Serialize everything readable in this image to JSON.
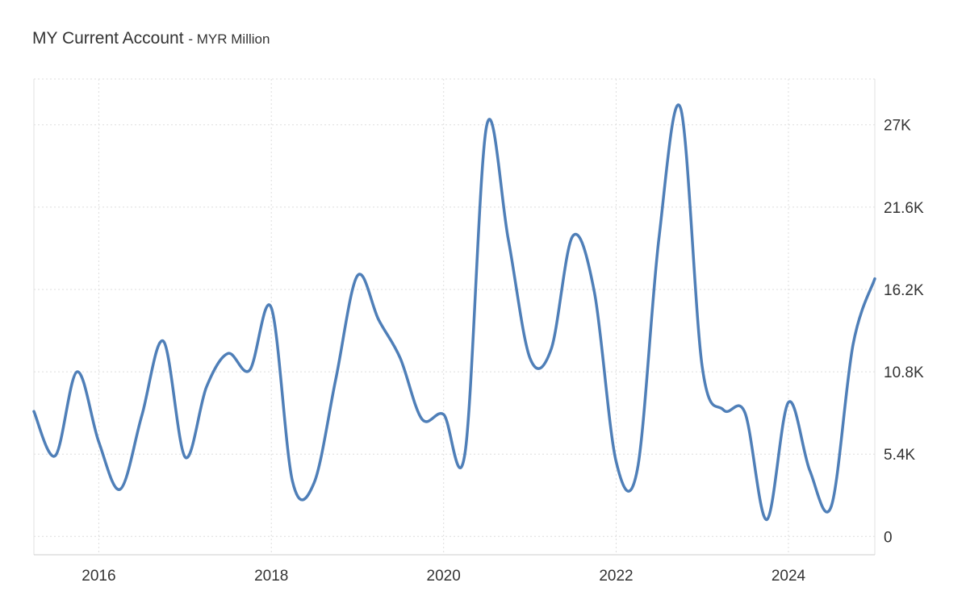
{
  "title": "MY Current Account",
  "subtitle": "- MYR Million",
  "chart_data": {
    "type": "line",
    "title": "MY Current Account",
    "subtitle": "MYR Million",
    "xlabel": "",
    "ylabel": "",
    "x_ticks": [
      "2016",
      "2018",
      "2020",
      "2022",
      "2024"
    ],
    "y_ticks": [
      {
        "value": 0,
        "label": "0"
      },
      {
        "value": 5400,
        "label": "5.4K"
      },
      {
        "value": 10800,
        "label": "10.8K"
      },
      {
        "value": 16200,
        "label": "16.2K"
      },
      {
        "value": 21600,
        "label": "21.6K"
      },
      {
        "value": 27000,
        "label": "27K"
      }
    ],
    "xlim": [
      "2015-04-01",
      "2025-01-01"
    ],
    "ylim": [
      -1200,
      30000
    ],
    "grid": true,
    "line_color": "#4f7fb8",
    "series": [
      {
        "x": [
          "2015-04-01",
          "2015-07-01",
          "2015-10-01",
          "2016-01-01",
          "2016-04-01",
          "2016-07-01",
          "2016-10-01",
          "2017-01-01",
          "2017-04-01",
          "2017-07-01",
          "2017-10-01",
          "2018-01-01",
          "2018-04-01",
          "2018-07-01",
          "2018-10-01",
          "2019-01-01",
          "2019-04-01",
          "2019-07-01",
          "2019-10-01",
          "2020-01-01",
          "2020-04-01",
          "2020-07-01",
          "2020-10-01",
          "2021-01-01",
          "2021-04-01",
          "2021-07-01",
          "2021-10-01",
          "2022-01-01",
          "2022-04-01",
          "2022-07-01",
          "2022-10-01",
          "2023-01-01",
          "2023-04-01",
          "2023-07-01",
          "2023-10-01",
          "2024-01-01",
          "2024-04-01",
          "2024-07-01",
          "2024-10-01",
          "2025-01-01"
        ],
        "values": [
          8200,
          5300,
          10800,
          6200,
          3100,
          7900,
          12800,
          5200,
          9800,
          12000,
          10900,
          15000,
          3600,
          3500,
          10300,
          17100,
          14200,
          11700,
          7700,
          8000,
          5500,
          26900,
          19500,
          11700,
          12300,
          19700,
          16000,
          4900,
          4400,
          19500,
          28100,
          11100,
          8300,
          8100,
          1100,
          8800,
          4300,
          2000,
          12600,
          16900
        ]
      }
    ]
  }
}
